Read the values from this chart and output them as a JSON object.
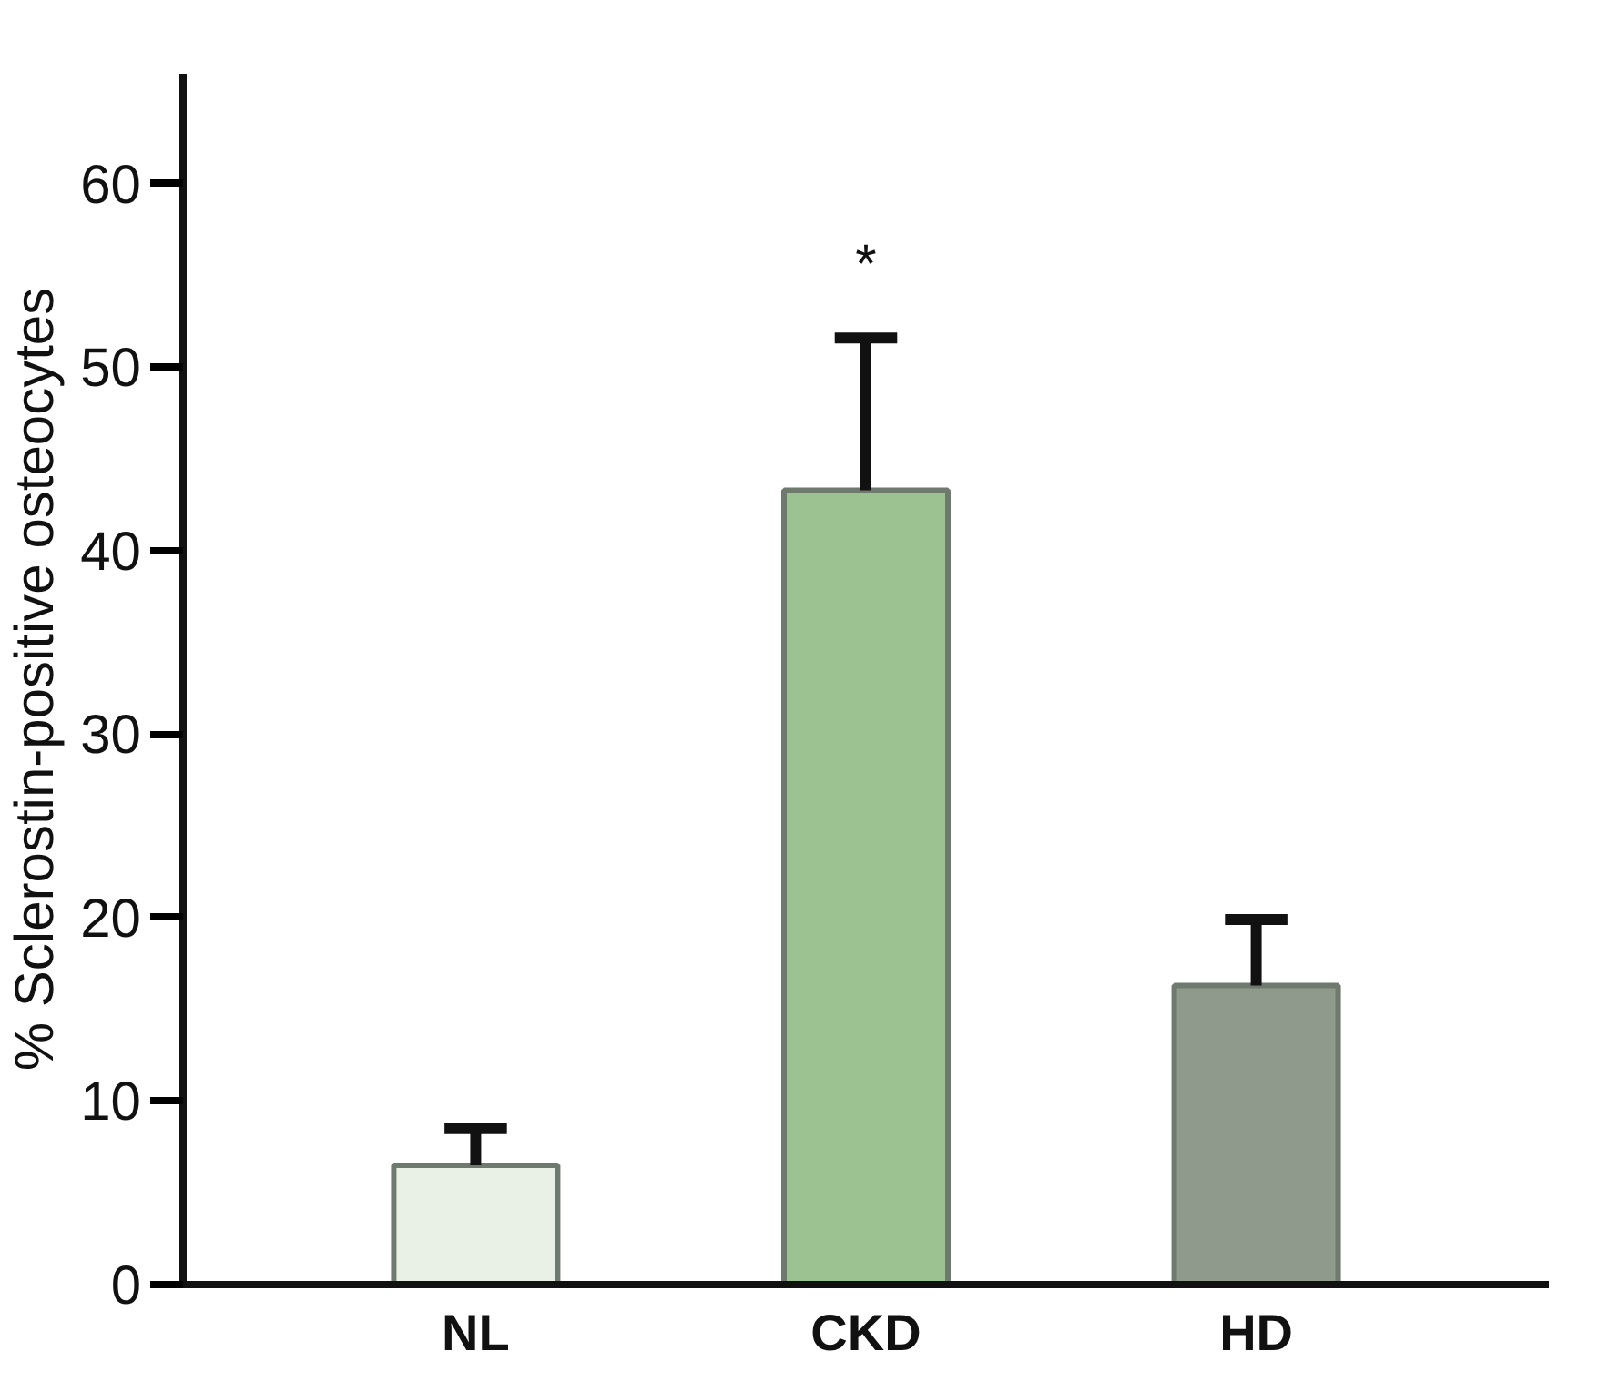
{
  "chart_data": {
    "type": "bar",
    "ylabel": "% Sclerostin-positive osteocytes",
    "categories": [
      "NL",
      "CKD",
      "HD"
    ],
    "values": [
      6.5,
      43.3,
      16.3
    ],
    "colors": [
      "#e9f1e7",
      "#9cc292",
      "#8f9a8c"
    ],
    "errors": [
      [
        6.5,
        8.5
      ],
      [
        43.3,
        51.6
      ],
      [
        16.3,
        19.9
      ]
    ],
    "ylim": [
      0,
      66
    ],
    "yticks": [
      0,
      10,
      20,
      30,
      40,
      50,
      60
    ],
    "annotations": [
      "*"
    ],
    "grid": false
  }
}
